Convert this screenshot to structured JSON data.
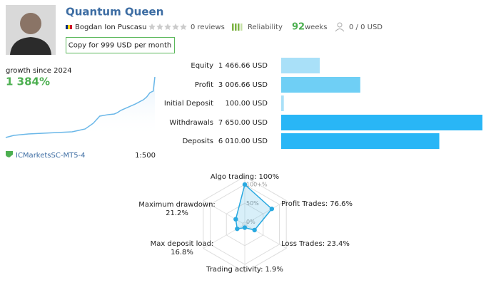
{
  "profile": {
    "name": "Quantum Queen",
    "author": "Bogdan Ion Puscasu",
    "reviews": "0 reviews",
    "reliability": "Reliability",
    "weeks": 92,
    "weeks_unit": "weeks",
    "funds": "0 / 0 USD",
    "button": "Copy for 999 USD per month",
    "broker": "ICMarketsSC-MT5-4",
    "leverage": "1:500"
  },
  "chart_data": [
    {
      "type": "line",
      "title": "growth since 2024",
      "subtitle": "1 384%",
      "color": "#6ab7e8",
      "x": [
        0,
        5,
        14,
        23,
        32,
        41,
        45,
        49,
        54,
        58,
        63,
        67,
        69,
        71,
        76,
        80,
        85,
        87,
        89,
        91,
        92
      ],
      "values": [
        0,
        49,
        82,
        98,
        114,
        130,
        163,
        196,
        326,
        489,
        522,
        538,
        571,
        620,
        701,
        766,
        864,
        929,
        1027,
        1060,
        1384
      ],
      "xlim": [
        0,
        92
      ],
      "ylim": [
        0,
        1384
      ]
    },
    {
      "type": "hbar",
      "categories": [
        "Equity",
        "Profit",
        "Initial Deposit",
        "Withdrawals",
        "Deposits"
      ],
      "values": [
        1466.66,
        3006.66,
        100,
        7650,
        6010
      ],
      "value_labels": [
        "1 466.66 USD",
        "3 006.66 USD",
        "100.00 USD",
        "7 650.00 USD",
        "6 010.00 USD"
      ],
      "colors": [
        "#a9e0f8",
        "#6fcff5",
        "#a9e0f8",
        "#29b6f6",
        "#29b6f6"
      ],
      "xlim": [
        0,
        7650
      ]
    },
    {
      "type": "radar",
      "categories": [
        "Algo trading:",
        "Profit Trades:",
        "Loss Trades:",
        "Trading activity:",
        "Max deposit load:",
        "Maximum drawdown:"
      ],
      "values": [
        100,
        76.6,
        23.4,
        1.9,
        16.8,
        21.2
      ],
      "value_labels": [
        "100%",
        "76.6%",
        "23.4%",
        "1.9%",
        "16.8%",
        "21.2%"
      ],
      "color": "#29a9e0",
      "rlim": [
        0,
        100
      ],
      "rticks": [
        {
          "value": 0,
          "label": "0%"
        },
        {
          "value": 50,
          "label": "50%"
        },
        {
          "value": 100,
          "label": "100+%"
        }
      ]
    }
  ]
}
